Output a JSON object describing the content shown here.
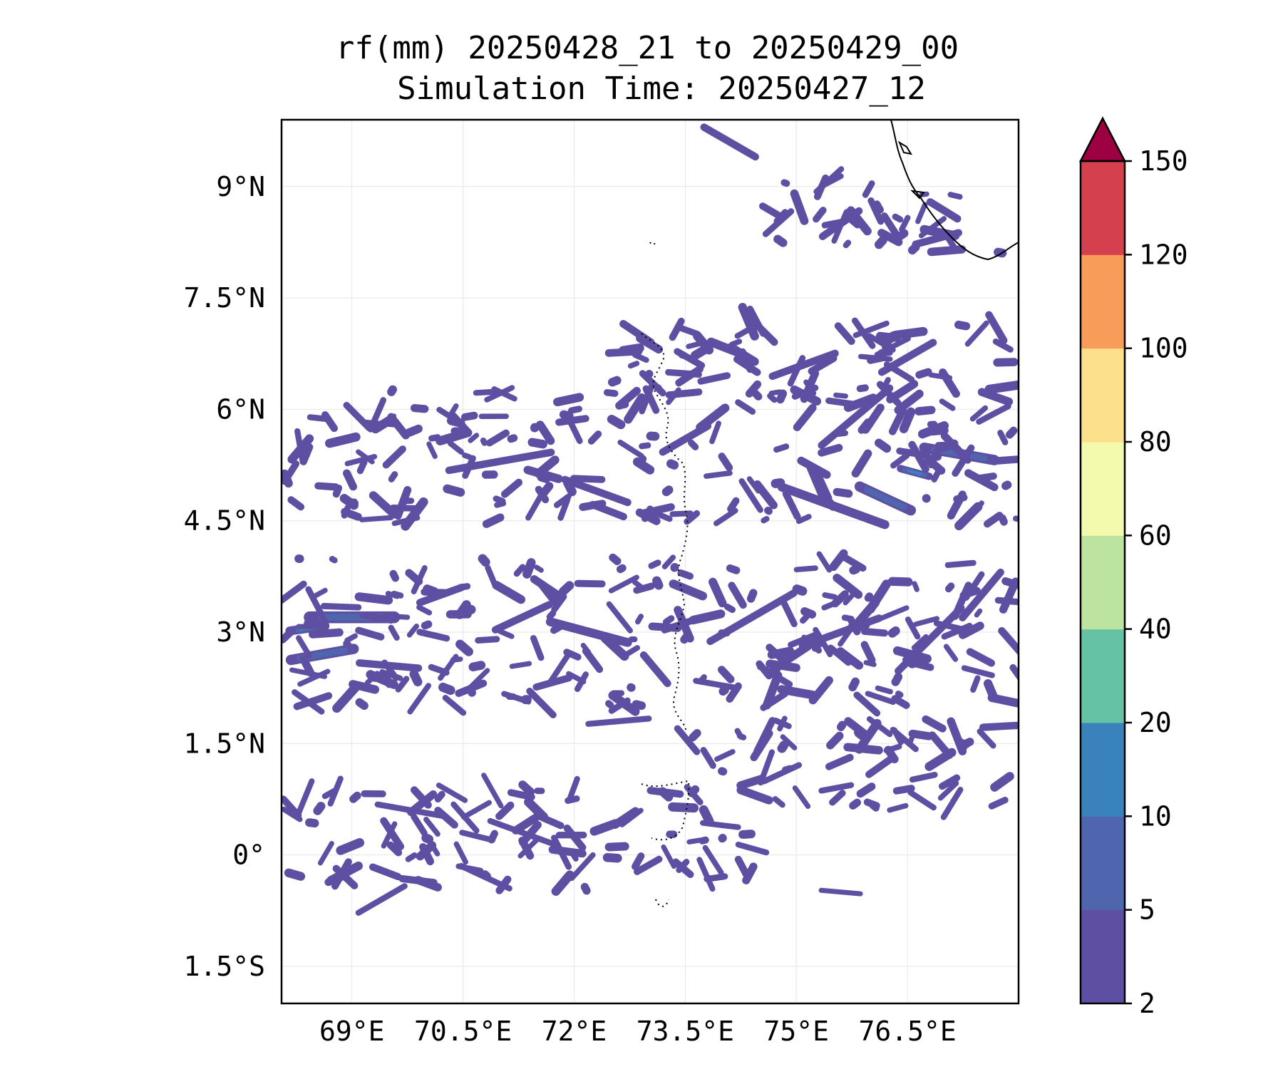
{
  "chart_data": {
    "type": "heatmap",
    "title": "rf(mm) 20250428_21 to 20250429_00",
    "subtitle": "Simulation Time: 20250427_12",
    "xlabel": "",
    "ylabel": "",
    "xlim": [
      68.05,
      78.0
    ],
    "ylim": [
      -2.0,
      9.9
    ],
    "grid": true,
    "x_ticks": [
      {
        "value": 69.0,
        "label": "69°E"
      },
      {
        "value": 70.5,
        "label": "70.5°E"
      },
      {
        "value": 72.0,
        "label": "72°E"
      },
      {
        "value": 73.5,
        "label": "73.5°E"
      },
      {
        "value": 75.0,
        "label": "75°E"
      },
      {
        "value": 76.5,
        "label": "76.5°E"
      }
    ],
    "y_ticks": [
      {
        "value": 9.0,
        "label": "9°N"
      },
      {
        "value": 7.5,
        "label": "7.5°N"
      },
      {
        "value": 6.0,
        "label": "6°N"
      },
      {
        "value": 4.5,
        "label": "4.5°N"
      },
      {
        "value": 3.0,
        "label": "3°N"
      },
      {
        "value": 1.5,
        "label": "1.5°N"
      },
      {
        "value": 0.0,
        "label": "0°"
      },
      {
        "value": -1.5,
        "label": "1.5°S"
      }
    ],
    "colorbar": {
      "levels": [
        2,
        5,
        10,
        20,
        40,
        60,
        80,
        100,
        120,
        150
      ],
      "labels": [
        "2",
        "5",
        "10",
        "20",
        "40",
        "60",
        "80",
        "100",
        "120",
        "150"
      ],
      "colors": [
        "#5e4fa2",
        "#4f65ad",
        "#3a82bc",
        "#66c2a5",
        "#bce4a0",
        "#f3f9ad",
        "#fce08b",
        "#f89d59",
        "#d5404e"
      ],
      "extend_max_color": "#9e0142"
    },
    "rain_features": [
      {
        "lon": 69.0,
        "lat": 3.2,
        "len": 1.3,
        "ang": 0,
        "w": 0.16,
        "lvl": 1
      },
      {
        "lon": 68.4,
        "lat": 3.05,
        "len": 0.6,
        "ang": -8,
        "w": 0.12,
        "lvl": 2
      },
      {
        "lon": 68.6,
        "lat": 2.7,
        "len": 1.0,
        "ang": -10,
        "w": 0.14,
        "lvl": 1
      },
      {
        "lon": 69.5,
        "lat": 2.55,
        "len": 0.9,
        "ang": 5,
        "w": 0.1,
        "lvl": 0
      },
      {
        "lon": 70.2,
        "lat": 3.5,
        "len": 0.7,
        "ang": -20,
        "w": 0.1,
        "lvl": 0
      },
      {
        "lon": 71.3,
        "lat": 3.2,
        "len": 0.9,
        "ang": -25,
        "w": 0.1,
        "lvl": 0
      },
      {
        "lon": 72.2,
        "lat": 3.0,
        "len": 1.2,
        "ang": 15,
        "w": 0.12,
        "lvl": 0
      },
      {
        "lon": 73.1,
        "lat": 2.5,
        "len": 0.6,
        "ang": 50,
        "w": 0.1,
        "lvl": 0
      },
      {
        "lon": 71.0,
        "lat": 5.3,
        "len": 1.5,
        "ang": -10,
        "w": 0.1,
        "lvl": 0
      },
      {
        "lon": 72.3,
        "lat": 4.9,
        "len": 1.0,
        "ang": 20,
        "w": 0.1,
        "lvl": 0
      },
      {
        "lon": 73.5,
        "lat": 5.6,
        "len": 0.8,
        "ang": -30,
        "w": 0.1,
        "lvl": 0
      },
      {
        "lon": 75.5,
        "lat": 4.7,
        "len": 1.6,
        "ang": 20,
        "w": 0.12,
        "lvl": 0
      },
      {
        "lon": 76.2,
        "lat": 4.8,
        "len": 0.9,
        "ang": 25,
        "w": 0.14,
        "lvl": 1
      },
      {
        "lon": 77.2,
        "lat": 5.4,
        "len": 1.1,
        "ang": 10,
        "w": 0.14,
        "lvl": 1
      },
      {
        "lon": 76.6,
        "lat": 5.15,
        "len": 0.5,
        "ang": 15,
        "w": 0.1,
        "lvl": 2
      },
      {
        "lon": 75.8,
        "lat": 5.9,
        "len": 1.3,
        "ang": -40,
        "w": 0.1,
        "lvl": 0
      },
      {
        "lon": 74.4,
        "lat": 3.2,
        "len": 1.4,
        "ang": -30,
        "w": 0.1,
        "lvl": 0
      },
      {
        "lon": 75.6,
        "lat": 3.0,
        "len": 1.2,
        "ang": -20,
        "w": 0.1,
        "lvl": 0
      },
      {
        "lon": 76.8,
        "lat": 2.9,
        "len": 1.3,
        "ang": -45,
        "w": 0.1,
        "lvl": 0
      },
      {
        "lon": 77.5,
        "lat": 3.5,
        "len": 0.9,
        "ang": -50,
        "w": 0.1,
        "lvl": 0
      },
      {
        "lon": 75.1,
        "lat": 6.6,
        "len": 1.0,
        "ang": -20,
        "w": 0.1,
        "lvl": 0
      },
      {
        "lon": 76.5,
        "lat": 6.7,
        "len": 0.9,
        "ang": -30,
        "w": 0.1,
        "lvl": 0
      },
      {
        "lon": 77.7,
        "lat": 7.1,
        "len": 0.5,
        "ang": 60,
        "w": 0.1,
        "lvl": 0
      },
      {
        "lon": 75.6,
        "lat": 8.5,
        "len": 0.7,
        "ang": -35,
        "w": 0.1,
        "lvl": 0
      },
      {
        "lon": 76.9,
        "lat": 8.3,
        "len": 0.7,
        "ang": -15,
        "w": 0.1,
        "lvl": 0
      },
      {
        "lon": 74.1,
        "lat": 9.6,
        "len": 0.9,
        "ang": 30,
        "w": 0.1,
        "lvl": 0
      },
      {
        "lon": 69.8,
        "lat": 0.6,
        "len": 1.0,
        "ang": 10,
        "w": 0.08,
        "lvl": 0
      },
      {
        "lon": 71.3,
        "lat": 0.3,
        "len": 1.0,
        "ang": 20,
        "w": 0.08,
        "lvl": 0
      },
      {
        "lon": 69.4,
        "lat": -0.6,
        "len": 0.8,
        "ang": -30,
        "w": 0.08,
        "lvl": 0
      },
      {
        "lon": 70.8,
        "lat": -0.3,
        "len": 0.8,
        "ang": 25,
        "w": 0.08,
        "lvl": 0
      },
      {
        "lon": 74.8,
        "lat": 1.1,
        "len": 0.6,
        "ang": -25,
        "w": 0.08,
        "lvl": 0
      },
      {
        "lon": 75.6,
        "lat": -0.5,
        "len": 0.6,
        "ang": 5,
        "w": 0.06,
        "lvl": 0
      },
      {
        "lon": 68.3,
        "lat": 5.5,
        "len": 0.5,
        "ang": 80,
        "w": 0.08,
        "lvl": 0
      },
      {
        "lon": 72.6,
        "lat": 1.8,
        "len": 0.9,
        "ang": -5,
        "w": 0.08,
        "lvl": 0
      },
      {
        "lon": 73.9,
        "lat": 2.3,
        "len": 0.6,
        "ang": 10,
        "w": 0.08,
        "lvl": 0
      }
    ]
  }
}
